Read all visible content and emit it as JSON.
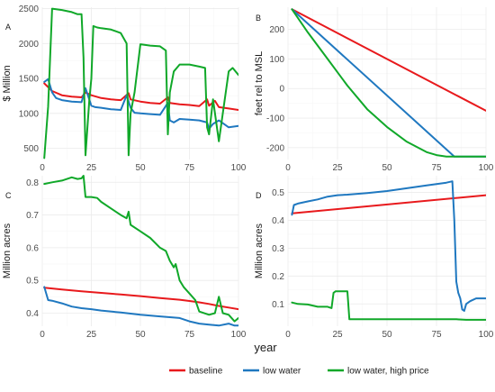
{
  "xlabel": "year",
  "legend": [
    {
      "name": "baseline",
      "color": "#e8191c"
    },
    {
      "name": "low water",
      "color": "#1f78c0"
    },
    {
      "name": "low water, high price",
      "color": "#10a829"
    }
  ],
  "chart_data": [
    {
      "type": "line",
      "panel": "A",
      "ylabel": "$ Million",
      "xlim": [
        0,
        100
      ],
      "ylim": [
        340,
        2520
      ],
      "xticks": [
        0,
        25,
        50,
        75,
        100
      ],
      "yticks": [
        500,
        1000,
        1500,
        2000,
        2500
      ],
      "series": [
        {
          "name": "baseline",
          "x": [
            1,
            5,
            10,
            15,
            20,
            22,
            25,
            30,
            35,
            40,
            44,
            45,
            50,
            55,
            60,
            64,
            65,
            70,
            75,
            80,
            84,
            85,
            88,
            90,
            95,
            100
          ],
          "y": [
            1430,
            1320,
            1260,
            1240,
            1230,
            1300,
            1260,
            1220,
            1200,
            1190,
            1290,
            1200,
            1170,
            1150,
            1140,
            1230,
            1150,
            1130,
            1120,
            1105,
            1200,
            1110,
            1180,
            1090,
            1070,
            1050
          ]
        },
        {
          "name": "low water",
          "x": [
            1,
            3,
            5,
            7,
            10,
            15,
            20,
            22,
            25,
            27,
            30,
            35,
            40,
            43,
            45,
            47,
            50,
            55,
            60,
            64,
            65,
            67,
            70,
            75,
            80,
            84,
            85,
            87,
            90,
            95,
            100
          ],
          "y": [
            1450,
            1490,
            1300,
            1220,
            1190,
            1170,
            1160,
            1360,
            1110,
            1090,
            1080,
            1060,
            1050,
            1260,
            1080,
            1010,
            1000,
            990,
            980,
            1150,
            900,
            870,
            920,
            910,
            900,
            870,
            780,
            850,
            900,
            800,
            820
          ]
        },
        {
          "name": "low water, high price",
          "x": [
            1,
            3,
            5,
            10,
            15,
            18,
            20,
            21,
            22,
            24,
            25,
            26,
            28,
            30,
            35,
            40,
            43,
            44,
            45,
            47,
            50,
            55,
            60,
            63,
            64,
            65,
            67,
            70,
            75,
            80,
            83,
            84,
            85,
            87,
            90,
            95,
            97,
            100
          ],
          "y": [
            360,
            1100,
            2500,
            2480,
            2450,
            2420,
            2420,
            1800,
            400,
            1200,
            1500,
            2250,
            2230,
            2220,
            2200,
            2150,
            2000,
            400,
            1000,
            1300,
            1990,
            1970,
            1960,
            1900,
            700,
            1300,
            1600,
            1700,
            1700,
            1670,
            1650,
            800,
            700,
            1200,
            600,
            1600,
            1650,
            1550
          ]
        }
      ]
    },
    {
      "type": "line",
      "panel": "B",
      "ylabel": "feet rel to MSL",
      "xlim": [
        0,
        100
      ],
      "ylim": [
        -240,
        275
      ],
      "xticks": [
        0,
        25,
        50,
        75,
        100
      ],
      "yticks": [
        -200,
        -100,
        0,
        100,
        200
      ],
      "series": [
        {
          "name": "baseline",
          "x": [
            2,
            100
          ],
          "y": [
            268,
            -75
          ]
        },
        {
          "name": "low water",
          "x": [
            2,
            84,
            90,
            100
          ],
          "y": [
            268,
            -230,
            -230,
            -230
          ]
        },
        {
          "name": "low water, high price",
          "x": [
            2,
            10,
            20,
            30,
            40,
            50,
            60,
            70,
            75,
            80,
            90,
            100
          ],
          "y": [
            268,
            190,
            100,
            10,
            -70,
            -130,
            -180,
            -215,
            -225,
            -230,
            -230,
            -230
          ]
        }
      ]
    },
    {
      "type": "line",
      "panel": "C",
      "ylabel": "Million acres",
      "xlim": [
        0,
        100
      ],
      "ylim": [
        0.36,
        0.82
      ],
      "xticks": [
        0,
        25,
        50,
        75,
        100
      ],
      "yticks": [
        0.4,
        0.5,
        0.6,
        0.7,
        0.8
      ],
      "series": [
        {
          "name": "baseline",
          "x": [
            1,
            10,
            20,
            30,
            40,
            50,
            60,
            70,
            75,
            80,
            85,
            90,
            95,
            100
          ],
          "y": [
            0.478,
            0.472,
            0.467,
            0.462,
            0.457,
            0.452,
            0.446,
            0.441,
            0.437,
            0.433,
            0.428,
            0.422,
            0.417,
            0.412
          ]
        },
        {
          "name": "low water",
          "x": [
            1,
            3,
            5,
            10,
            15,
            20,
            25,
            30,
            40,
            50,
            60,
            70,
            75,
            80,
            85,
            90,
            95,
            98,
            100
          ],
          "y": [
            0.48,
            0.44,
            0.438,
            0.43,
            0.42,
            0.415,
            0.412,
            0.408,
            0.402,
            0.395,
            0.39,
            0.385,
            0.375,
            0.368,
            0.365,
            0.362,
            0.368,
            0.362,
            0.362
          ]
        },
        {
          "name": "low water, high price",
          "x": [
            1,
            5,
            10,
            15,
            18,
            20,
            21,
            22,
            25,
            28,
            30,
            35,
            40,
            43,
            44,
            45,
            50,
            55,
            60,
            63,
            65,
            67,
            68,
            70,
            72,
            75,
            78,
            80,
            85,
            88,
            90,
            92,
            95,
            98,
            100
          ],
          "y": [
            0.795,
            0.8,
            0.805,
            0.815,
            0.81,
            0.812,
            0.82,
            0.755,
            0.755,
            0.752,
            0.74,
            0.72,
            0.7,
            0.69,
            0.71,
            0.67,
            0.65,
            0.63,
            0.6,
            0.59,
            0.56,
            0.54,
            0.55,
            0.5,
            0.48,
            0.46,
            0.44,
            0.405,
            0.395,
            0.4,
            0.45,
            0.4,
            0.395,
            0.375,
            0.385
          ]
        }
      ]
    },
    {
      "type": "line",
      "panel": "D",
      "ylabel": "Million acres",
      "xlim": [
        0,
        100
      ],
      "ylim": [
        0.02,
        0.56
      ],
      "xticks": [
        0,
        25,
        50,
        75,
        100
      ],
      "yticks": [
        0.1,
        0.2,
        0.3,
        0.4,
        0.5
      ],
      "series": [
        {
          "name": "baseline",
          "x": [
            2,
            100
          ],
          "y": [
            0.425,
            0.49
          ]
        },
        {
          "name": "low water",
          "x": [
            2,
            3,
            5,
            10,
            15,
            20,
            25,
            30,
            40,
            50,
            60,
            70,
            75,
            80,
            83,
            84,
            85,
            86,
            87,
            88,
            89,
            90,
            92,
            95,
            100
          ],
          "y": [
            0.42,
            0.455,
            0.46,
            0.468,
            0.475,
            0.485,
            0.49,
            0.492,
            0.498,
            0.505,
            0.515,
            0.525,
            0.53,
            0.535,
            0.54,
            0.4,
            0.18,
            0.14,
            0.12,
            0.08,
            0.075,
            0.1,
            0.11,
            0.12,
            0.12
          ]
        },
        {
          "name": "low water, high price",
          "x": [
            2,
            5,
            10,
            15,
            20,
            22,
            23,
            24,
            25,
            30,
            31,
            35,
            40,
            50,
            60,
            70,
            80,
            85,
            90,
            95,
            100
          ],
          "y": [
            0.105,
            0.1,
            0.098,
            0.09,
            0.09,
            0.085,
            0.14,
            0.145,
            0.145,
            0.145,
            0.045,
            0.045,
            0.045,
            0.045,
            0.045,
            0.045,
            0.045,
            0.045,
            0.043,
            0.043,
            0.043
          ]
        }
      ]
    }
  ]
}
